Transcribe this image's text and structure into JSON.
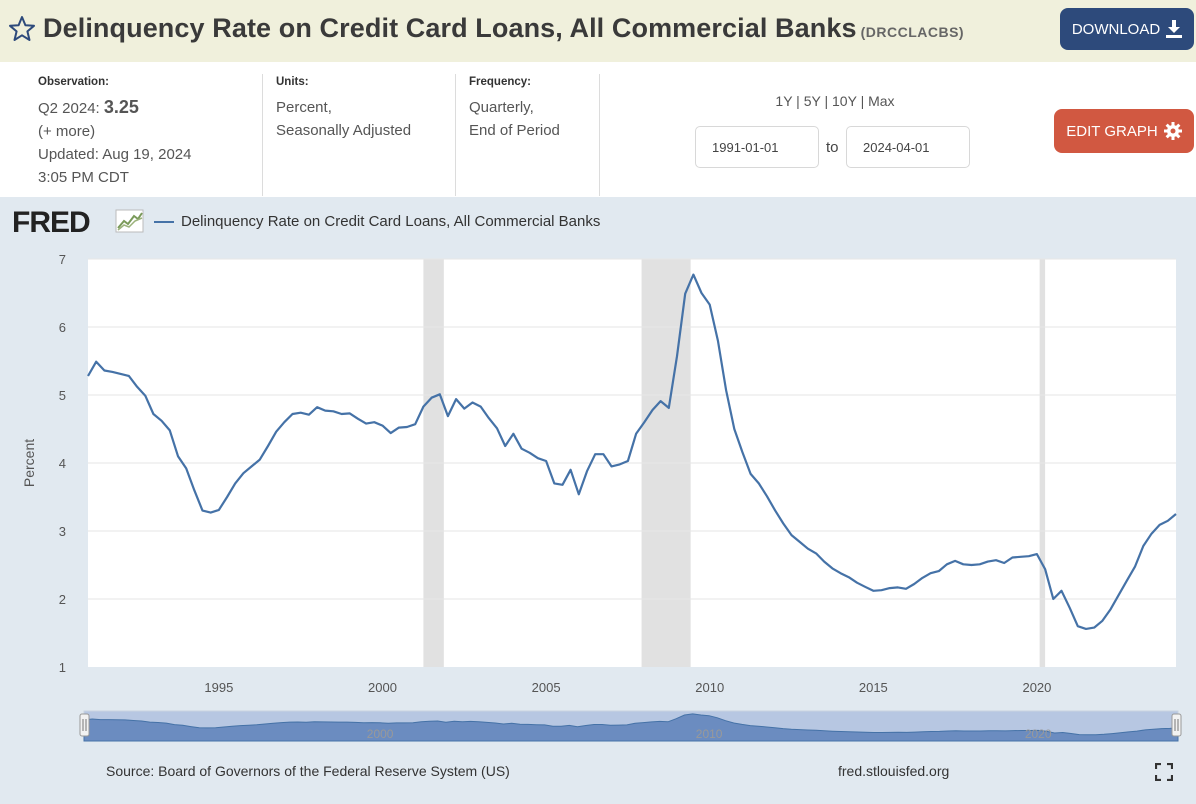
{
  "header": {
    "title": "Delinquency Rate on Credit Card Loans, All Commercial Banks",
    "series_id": "(DRCCLACBS)",
    "download_label": "DOWNLOAD",
    "icons": {
      "favorite": "star-icon",
      "download": "download-icon"
    }
  },
  "meta": {
    "observation": {
      "label": "Observation:",
      "period": "Q2 2024:",
      "value": "3.25",
      "more": "(+ more)",
      "updated_label": "Updated:",
      "updated_date": "Aug 19, 2024",
      "updated_time": "3:05 PM CDT"
    },
    "units": {
      "label": "Units:",
      "line1": "Percent,",
      "line2": "Seasonally Adjusted"
    },
    "frequency": {
      "label": "Frequency:",
      "line1": "Quarterly,",
      "line2": "End of Period"
    }
  },
  "range": {
    "links": [
      "1Y",
      "5Y",
      "10Y",
      "Max"
    ],
    "start": "1991-01-01",
    "end": "2024-04-01",
    "to_label": "to"
  },
  "edit_label": "EDIT GRAPH",
  "graph": {
    "brand": "FRED",
    "legend_label": "Delinquency Rate on Credit Card Loans, All Commercial Banks",
    "source": "Source: Board of Governors of the Federal Reserve System (US)",
    "site": "fred.stlouisfed.org"
  },
  "colors": {
    "series": "#4572a7",
    "recession": "#e1e1e1",
    "header_bg": "#f0f0dc",
    "download": "#2d4a7b",
    "edit": "#d15841",
    "graph_bg": "#e1e9f0"
  },
  "chart_data": {
    "type": "line",
    "title": "",
    "xlabel": "",
    "ylabel": "Percent",
    "xlim": [
      1991.0,
      2024.25
    ],
    "ylim": [
      1,
      7
    ],
    "y_ticks": [
      1,
      2,
      3,
      4,
      5,
      6,
      7
    ],
    "x_ticks": [
      1995,
      2000,
      2005,
      2010,
      2015,
      2020
    ],
    "navigator_labels": [
      2000,
      2010,
      2020
    ],
    "grid": true,
    "legend": "top-left",
    "recessions": [
      [
        2001.25,
        2001.875
      ],
      [
        2007.917,
        2009.417
      ],
      [
        2020.083,
        2020.25
      ]
    ],
    "series": [
      {
        "name": "Delinquency Rate on Credit Card Loans, All Commercial Banks",
        "start": "1991-01-01",
        "frequency": "quarterly",
        "values": [
          5.28,
          5.49,
          5.36,
          5.34,
          5.31,
          5.28,
          5.12,
          4.99,
          4.72,
          4.62,
          4.48,
          4.1,
          3.92,
          3.6,
          3.3,
          3.27,
          3.31,
          3.5,
          3.7,
          3.85,
          3.95,
          4.05,
          4.25,
          4.46,
          4.6,
          4.72,
          4.74,
          4.71,
          4.82,
          4.77,
          4.76,
          4.72,
          4.73,
          4.65,
          4.58,
          4.6,
          4.55,
          4.44,
          4.52,
          4.53,
          4.57,
          4.83,
          4.96,
          5.01,
          4.69,
          4.94,
          4.8,
          4.89,
          4.83,
          4.66,
          4.51,
          4.25,
          4.43,
          4.21,
          4.15,
          4.07,
          4.03,
          3.7,
          3.68,
          3.9,
          3.54,
          3.88,
          4.13,
          4.13,
          3.95,
          3.98,
          4.03,
          4.43,
          4.6,
          4.78,
          4.91,
          4.81,
          5.57,
          6.49,
          6.77,
          6.5,
          6.33,
          5.8,
          5.07,
          4.5,
          4.16,
          3.84,
          3.7,
          3.51,
          3.3,
          3.11,
          2.94,
          2.84,
          2.74,
          2.67,
          2.55,
          2.45,
          2.38,
          2.32,
          2.24,
          2.18,
          2.12,
          2.13,
          2.16,
          2.17,
          2.15,
          2.22,
          2.31,
          2.38,
          2.41,
          2.51,
          2.56,
          2.51,
          2.5,
          2.51,
          2.55,
          2.57,
          2.53,
          2.61,
          2.62,
          2.63,
          2.66,
          2.44,
          2.0,
          2.12,
          1.87,
          1.6,
          1.56,
          1.58,
          1.68,
          1.85,
          2.06,
          2.27,
          2.48,
          2.78,
          2.96,
          3.09,
          3.15,
          3.25
        ]
      }
    ]
  }
}
